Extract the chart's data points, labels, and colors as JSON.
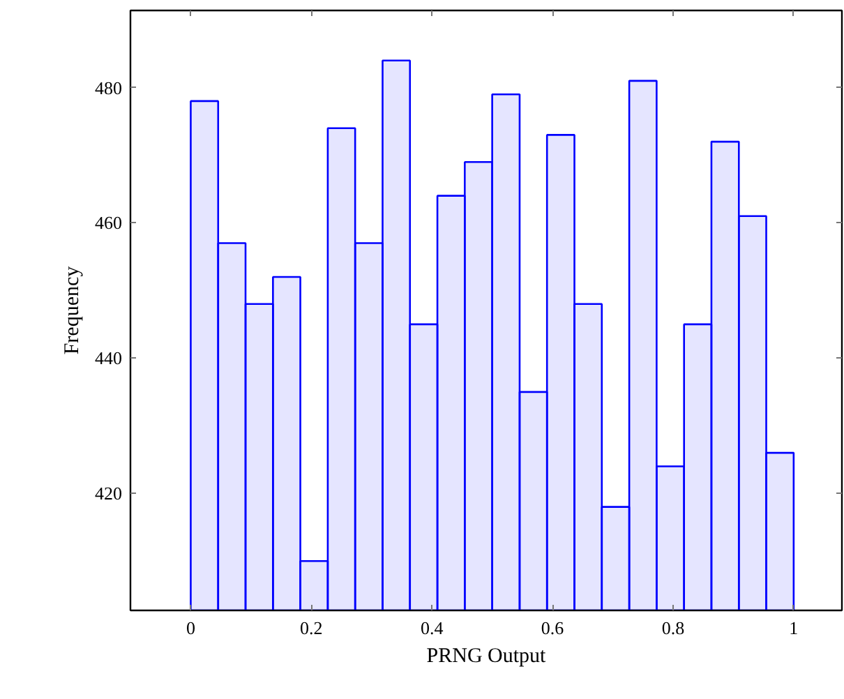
{
  "chart_data": {
    "type": "histogram",
    "xlabel": "PRNG Output",
    "ylabel": "Frequency",
    "bins": [
      0,
      0.0455,
      0.0909,
      0.1364,
      0.1818,
      0.2273,
      0.2727,
      0.3182,
      0.3636,
      0.4091,
      0.4545,
      0.5,
      0.5455,
      0.5909,
      0.6364,
      0.6818,
      0.7273,
      0.7727,
      0.8182,
      0.8636,
      0.9091,
      0.9545,
      1
    ],
    "values": [
      478,
      457,
      448,
      452,
      410,
      474,
      457,
      484,
      445,
      464,
      469,
      479,
      435,
      473,
      448,
      418,
      481,
      424,
      445,
      472,
      461,
      426
    ],
    "color": "#0000ff",
    "xlim": [
      -0.1,
      1.08
    ],
    "ylim": [
      402.7,
      491.4
    ],
    "xticks": [
      0,
      0.2,
      0.4,
      0.6,
      0.8,
      1
    ],
    "yticks": [
      420,
      440,
      460,
      480
    ],
    "grid": false
  }
}
